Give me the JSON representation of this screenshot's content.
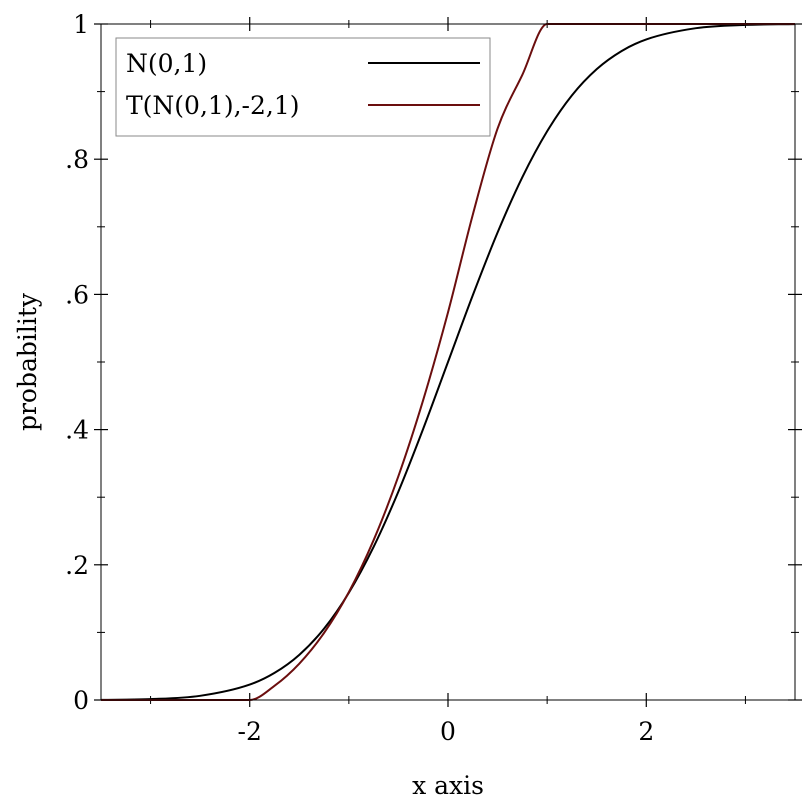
{
  "chart_data": {
    "type": "line",
    "title": "",
    "xlabel": "x axis",
    "ylabel": "probability",
    "xlim": [
      -3.5,
      3.5
    ],
    "ylim": [
      0,
      1
    ],
    "x_ticks": [
      {
        "value": -2,
        "label": "-2"
      },
      {
        "value": 0,
        "label": "0"
      },
      {
        "value": 2,
        "label": "2"
      }
    ],
    "x_minor_ticks": [
      -3,
      -1,
      1,
      3
    ],
    "y_ticks": [
      {
        "value": 0,
        "label": "0"
      },
      {
        "value": 0.2,
        "label": ".2"
      },
      {
        "value": 0.4,
        "label": ".4"
      },
      {
        "value": 0.6,
        "label": ".6"
      },
      {
        "value": 0.8,
        "label": ".8"
      },
      {
        "value": 1,
        "label": "1"
      }
    ],
    "y_minor_ticks": [
      0.1,
      0.3,
      0.5,
      0.7,
      0.9
    ],
    "grid": false,
    "legend": {
      "placement": "top-left"
    },
    "series": [
      {
        "name": "N(0,1)",
        "color": "#000000",
        "x": [
          -3.5,
          -3.0,
          -2.5,
          -2.0,
          -1.75,
          -1.5,
          -1.25,
          -1.0,
          -0.75,
          -0.5,
          -0.25,
          0.0,
          0.25,
          0.5,
          0.75,
          1.0,
          1.25,
          1.5,
          1.75,
          2.0,
          2.5,
          3.0,
          3.5
        ],
        "y": [
          0.0002,
          0.0013,
          0.0062,
          0.0228,
          0.0401,
          0.0668,
          0.1056,
          0.1587,
          0.2266,
          0.3085,
          0.4013,
          0.5,
          0.5987,
          0.6915,
          0.7734,
          0.8413,
          0.8944,
          0.9332,
          0.9599,
          0.9772,
          0.9938,
          0.9987,
          0.9998
        ]
      },
      {
        "name": "T(N(0,1),-2,1)",
        "color": "#6b0e0e",
        "x": [
          -3.5,
          -2.0,
          -1.75,
          -1.5,
          -1.25,
          -1.0,
          -0.75,
          -0.5,
          -0.25,
          0.0,
          0.25,
          0.5,
          0.75,
          1.0,
          3.5
        ],
        "y": [
          0.0,
          0.0,
          0.021,
          0.0538,
          0.0993,
          0.1596,
          0.2366,
          0.3313,
          0.4439,
          0.5734,
          0.7179,
          0.8453,
          0.9249,
          1.0,
          1.0
        ]
      }
    ]
  }
}
